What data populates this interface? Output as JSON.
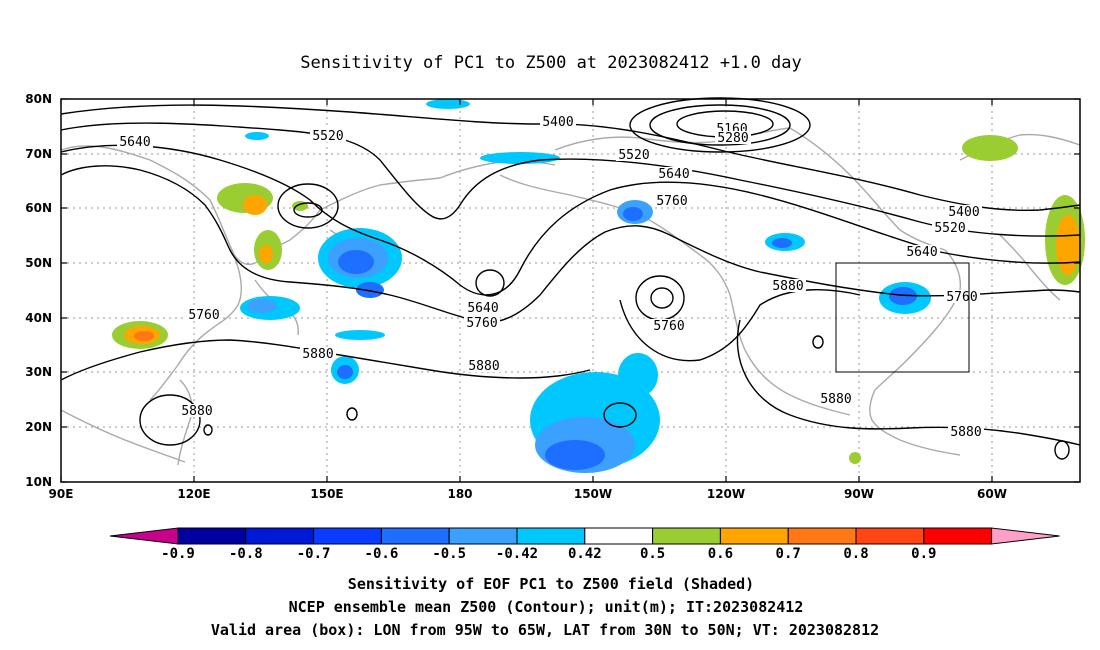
{
  "title": "Sensitivity of PC1 to Z500 at 2023082412 +1.0 day",
  "lat_ticks": [
    "80N",
    "70N",
    "60N",
    "50N",
    "40N",
    "30N",
    "20N",
    "10N"
  ],
  "lon_ticks": [
    "90E",
    "120E",
    "150E",
    "180",
    "150W",
    "120W",
    "90W",
    "60W"
  ],
  "contour_labels": [
    "5640",
    "5520",
    "5400",
    "5160",
    "5280",
    "5520",
    "5640",
    "5760",
    "5400",
    "5520",
    "5640",
    "5760",
    "5880",
    "5760",
    "5640",
    "5760",
    "5760",
    "5880",
    "5880",
    "5880",
    "5880",
    "5880"
  ],
  "colorbar": {
    "labels": [
      "-0.9",
      "-0.8",
      "-0.7",
      "-0.6",
      "-0.5",
      "-0.42",
      "0.42",
      "0.5",
      "0.6",
      "0.7",
      "0.8",
      "0.9"
    ],
    "colors": [
      "#0000a0",
      "#0018d8",
      "#0a3cff",
      "#1e6eff",
      "#3ca0ff",
      "#00c8ff",
      "#ffffff",
      "#9acd32",
      "#ffa500",
      "#ff7814",
      "#ff4614",
      "#ff0000"
    ],
    "low_end_color": "#c8008c",
    "high_end_color": "#ffa0c8"
  },
  "box": {
    "label": "Valid area",
    "lon": "95W to 65W",
    "lat": "30N to 50N"
  },
  "footer": [
    "Sensitivity of EOF PC1 to Z500 field (Shaded)",
    "NCEP ensemble mean Z500 (Contour); unit(m); IT:2023082412",
    "Valid area (box): LON from 95W to 65W, LAT from 30N to 50N; VT: 2023082812"
  ]
}
